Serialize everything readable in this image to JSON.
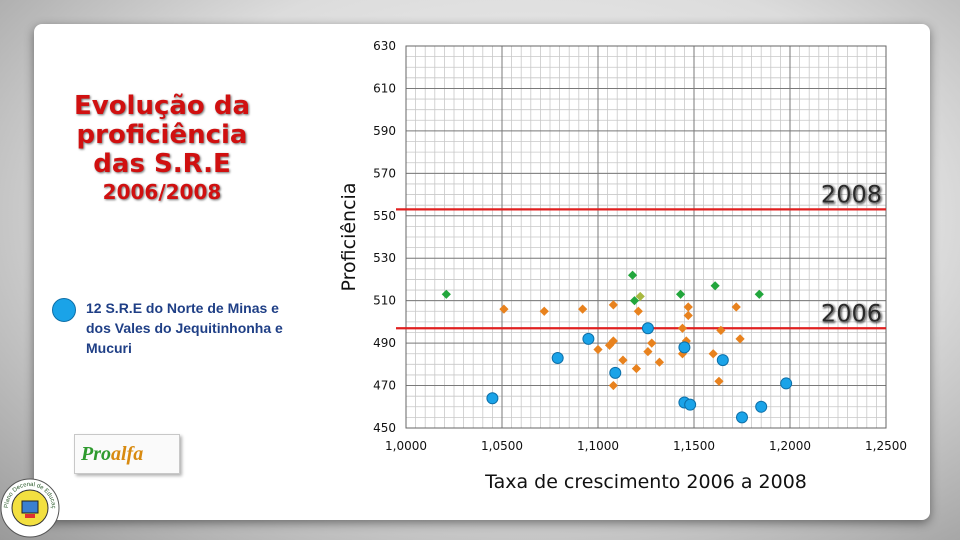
{
  "title": {
    "line1": "Evolução da",
    "line2": "proficiência",
    "line3": "das S.R.E",
    "line4": "2006/2008"
  },
  "legend": {
    "text": "12 S.R.E do Norte de Minas e dos Vales do Jequitinhonha e Mucuri",
    "dot_color": "#1aa3e8"
  },
  "logo": {
    "part1": "Pro",
    "part2": "alfa"
  },
  "seal": {
    "text": "Plano Decenal de Educação de Minas Gerais"
  },
  "chart_data": {
    "type": "scatter",
    "xlabel": "Taxa de crescimento 2006 a 2008",
    "ylabel": "Proficiência",
    "xlim": [
      1.0,
      1.25
    ],
    "ylim": [
      450,
      630
    ],
    "xticks": [
      "1,0000",
      "1,0500",
      "1,1000",
      "1,1500",
      "1,2000",
      "1,2500"
    ],
    "yticks": [
      "450",
      "470",
      "490",
      "510",
      "530",
      "550",
      "570",
      "590",
      "610",
      "630"
    ],
    "grid": true,
    "reference_lines": [
      {
        "label": "2008",
        "y": 553,
        "color": "#e02020"
      },
      {
        "label": "2006",
        "y": 497,
        "color": "#e02020"
      }
    ],
    "series": [
      {
        "marker": "diamond",
        "color": "#e8821e",
        "points": [
          [
            1.051,
            506
          ],
          [
            1.072,
            505
          ],
          [
            1.092,
            506
          ],
          [
            1.1,
            487
          ],
          [
            1.106,
            489
          ],
          [
            1.108,
            508
          ],
          [
            1.108,
            491
          ],
          [
            1.108,
            470
          ],
          [
            1.113,
            482
          ],
          [
            1.12,
            478
          ],
          [
            1.121,
            505
          ],
          [
            1.126,
            486
          ],
          [
            1.128,
            490
          ],
          [
            1.132,
            481
          ],
          [
            1.144,
            497
          ],
          [
            1.144,
            485
          ],
          [
            1.146,
            491
          ],
          [
            1.147,
            507
          ],
          [
            1.147,
            503
          ],
          [
            1.16,
            485
          ],
          [
            1.163,
            472
          ],
          [
            1.164,
            496
          ],
          [
            1.172,
            507
          ],
          [
            1.174,
            492
          ]
        ]
      },
      {
        "marker": "diamond",
        "color": "#22a63c",
        "points": [
          [
            1.021,
            513
          ],
          [
            1.118,
            522
          ],
          [
            1.119,
            510
          ],
          [
            1.143,
            513
          ],
          [
            1.161,
            517
          ],
          [
            1.184,
            513
          ]
        ]
      },
      {
        "marker": "diamond",
        "color": "#a8b840",
        "points": [
          [
            1.122,
            512
          ]
        ]
      },
      {
        "marker": "circle",
        "color": "#1aa3e8",
        "points": [
          [
            1.045,
            464
          ],
          [
            1.079,
            483
          ],
          [
            1.095,
            492
          ],
          [
            1.109,
            476
          ],
          [
            1.126,
            497
          ],
          [
            1.145,
            488
          ],
          [
            1.145,
            462
          ],
          [
            1.148,
            461
          ],
          [
            1.165,
            482
          ],
          [
            1.175,
            455
          ],
          [
            1.185,
            460
          ],
          [
            1.198,
            471
          ]
        ]
      }
    ]
  }
}
